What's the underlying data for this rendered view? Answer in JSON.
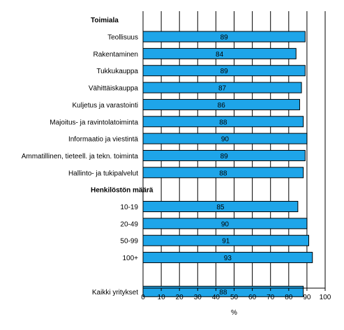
{
  "chart_data": {
    "type": "bar",
    "orientation": "horizontal",
    "groups": [
      {
        "header": "Toimiala",
        "rows": [
          {
            "label": "Teollisuus",
            "value": 89
          },
          {
            "label": "Rakentaminen",
            "value": 84
          },
          {
            "label": "Tukkukauppa",
            "value": 89
          },
          {
            "label": "Vähittäiskauppa",
            "value": 87
          },
          {
            "label": "Kuljetus ja varastointi",
            "value": 86
          },
          {
            "label": "Majoitus- ja ravintolatoiminta",
            "value": 88
          },
          {
            "label": "Informaatio ja viestintä",
            "value": 90
          },
          {
            "label": "Ammatillinen, tieteell. ja tekn. toiminta",
            "value": 89
          },
          {
            "label": "Hallinto- ja tukipalvelut",
            "value": 88
          }
        ]
      },
      {
        "header": "Henkilöstön määrä",
        "rows": [
          {
            "label": "10-19",
            "value": 85
          },
          {
            "label": "20-49",
            "value": 90
          },
          {
            "label": "50-99",
            "value": 91
          },
          {
            "label": "100+",
            "value": 93
          }
        ]
      },
      {
        "header": "",
        "rows": [
          {
            "label": "Kaikki yritykset",
            "value": 88
          }
        ]
      }
    ],
    "xlabel": "%",
    "xlim": [
      0,
      100
    ],
    "xticks": [
      0,
      10,
      20,
      30,
      40,
      50,
      60,
      70,
      80,
      90,
      100
    ],
    "grid": "vertical",
    "bar_color": "#1ea5e9",
    "bar_edge_color": "#000000",
    "legend": "none"
  }
}
